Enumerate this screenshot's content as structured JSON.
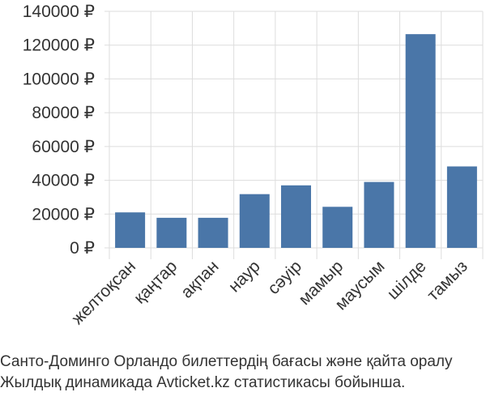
{
  "chart_data": {
    "type": "bar",
    "categories": [
      "желтоқсан",
      "қаңтар",
      "ақпан",
      "наур",
      "сәуір",
      "мамыр",
      "маусым",
      "шілде",
      "тамыз"
    ],
    "values": [
      21000,
      17800,
      17800,
      31800,
      37000,
      24300,
      39000,
      126500,
      48200
    ],
    "y_ticks": [
      "0 ₽",
      "20000 ₽",
      "40000 ₽",
      "60000 ₽",
      "80000 ₽",
      "100000 ₽",
      "120000 ₽",
      "140000 ₽"
    ],
    "ylim": [
      0,
      140000
    ],
    "grid": true,
    "bar_color": "#4a76a8",
    "grid_color": "#dddddd"
  },
  "caption": {
    "line1": "Санто-Доминго Орландо билеттердің бағасы және қайта оралу",
    "line2": "Жылдық динамикада Avticket.kz статистикасы бойынша."
  }
}
